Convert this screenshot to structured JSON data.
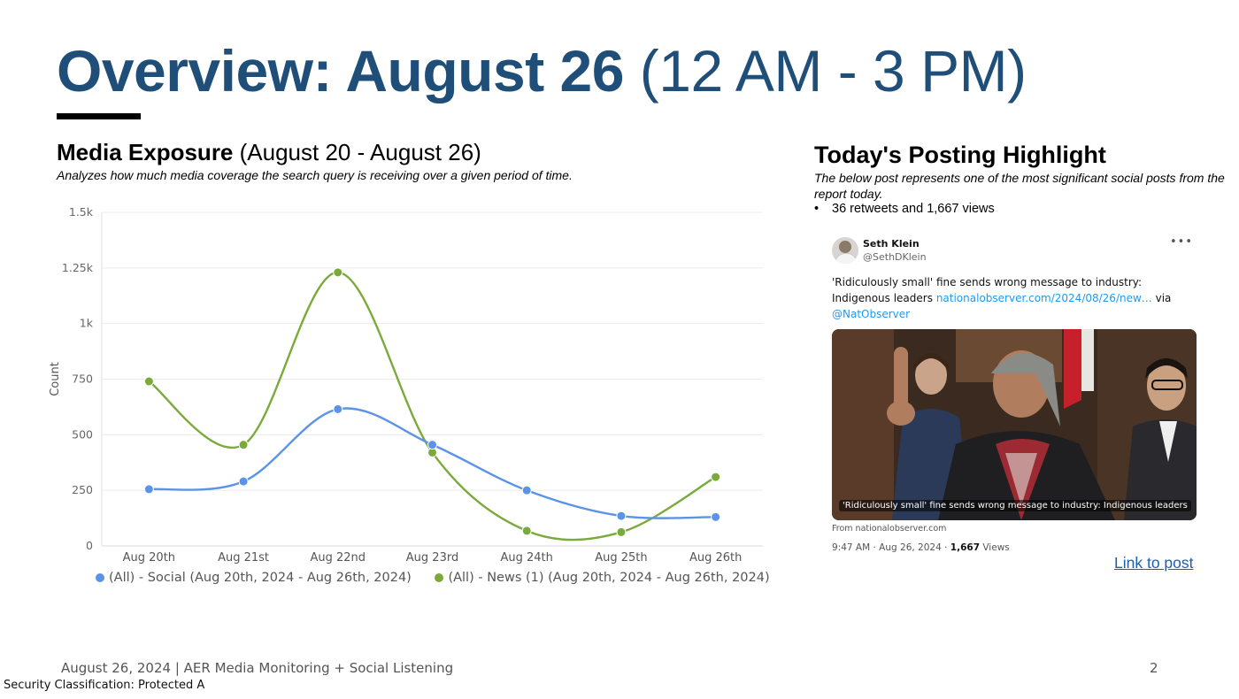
{
  "slide": {
    "title_bold": "Overview: August 26",
    "title_light": "(12 AM - 3 PM)"
  },
  "media": {
    "heading_bold": "Media Exposure",
    "heading_light": "(August 20 - August 26)",
    "description": "Analyzes how much media coverage the search query is receiving over a given period of time."
  },
  "chart_data": {
    "type": "line",
    "title": "",
    "xlabel": "",
    "ylabel": "Count",
    "categories": [
      "Aug 20th",
      "Aug 21st",
      "Aug 22nd",
      "Aug 23rd",
      "Aug 24th",
      "Aug 25th",
      "Aug 26th"
    ],
    "ylim": [
      0,
      1500
    ],
    "y_ticks": [
      0,
      250,
      500,
      750,
      1000,
      1250,
      1500
    ],
    "y_tick_labels": [
      "0",
      "250",
      "500",
      "750",
      "1k",
      "1.25k",
      "1.5k"
    ],
    "grid": true,
    "legend_position": "bottom",
    "series": [
      {
        "name": "(All) - Social (Aug 20th, 2024 - Aug 26th, 2024)",
        "color": "#5b93e8",
        "values": [
          255,
          290,
          615,
          455,
          250,
          135,
          130
        ]
      },
      {
        "name": "(All) - News (1) (Aug 20th, 2024 - Aug 26th, 2024)",
        "color": "#7aab3a",
        "values": [
          740,
          455,
          1230,
          420,
          68,
          62,
          310
        ]
      }
    ]
  },
  "highlight": {
    "heading": "Today's Posting Highlight",
    "description": "The below post represents one of the most significant social posts from the report today.",
    "bullet_symbol": "•",
    "bullet": "36 retweets and 1,667 views"
  },
  "tweet": {
    "author_name": "Seth Klein",
    "author_handle": "@SethDKlein",
    "more_icon": "•••",
    "text_main": "'Ridiculously small' fine sends wrong message to industry: Indigenous leaders",
    "link_text": "nationalobserver.com/2024/08/26/new…",
    "via_text": "via",
    "mention": "@NatObserver",
    "image_caption": "'Ridiculously small' fine sends wrong message to industry: Indigenous leaders",
    "from_text": "From nationalobserver.com",
    "timestamp": "9:47 AM · Aug 26, 2024 ·",
    "views_count": "1,667",
    "views_label": "Views"
  },
  "link_post": "Link to post",
  "footer": {
    "left": "August 26, 2024 | AER Media Monitoring + Social Listening",
    "page_number": "2",
    "classification": "Security Classification: Protected A"
  },
  "colors": {
    "title": "#1f4e79",
    "social": "#5b93e8",
    "news": "#7aab3a",
    "link": "#1a5fb4"
  }
}
